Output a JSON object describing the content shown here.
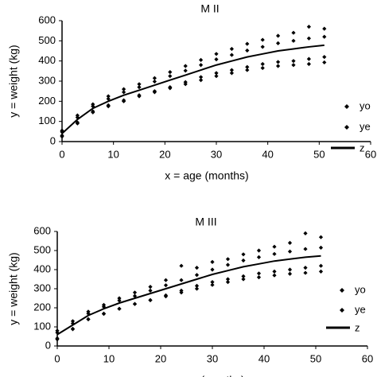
{
  "chart_data": [
    {
      "type": "scatter",
      "title": "M II",
      "x_label": "x = age (months)",
      "y_label": "y = weight (kg)",
      "xlim": [
        0,
        60
      ],
      "ylim": [
        0,
        600
      ],
      "xticks": [
        0,
        10,
        20,
        30,
        40,
        50,
        60
      ],
      "yticks": [
        0,
        100,
        200,
        300,
        400,
        500,
        600
      ],
      "legend": "right",
      "series": [
        {
          "name": "yo",
          "color": "#000000",
          "style": "marker",
          "x": [
            0,
            0,
            3,
            3,
            6,
            6,
            9,
            9,
            12,
            12,
            15,
            15,
            18,
            18,
            21,
            21,
            24,
            24,
            27,
            27,
            30,
            30,
            33,
            33,
            36,
            36,
            39,
            39,
            42,
            42,
            45,
            45,
            48,
            48,
            51,
            51
          ],
          "values": [
            55,
            30,
            130,
            95,
            185,
            150,
            225,
            180,
            260,
            205,
            285,
            230,
            315,
            250,
            345,
            270,
            375,
            295,
            405,
            320,
            435,
            340,
            460,
            355,
            485,
            370,
            505,
            385,
            525,
            395,
            540,
            400,
            570,
            410,
            560,
            420
          ]
        },
        {
          "name": "ye",
          "color": "#000000",
          "style": "marker",
          "x": [
            0,
            0,
            3,
            3,
            6,
            6,
            9,
            9,
            12,
            12,
            15,
            15,
            18,
            18,
            21,
            21,
            24,
            24,
            27,
            27,
            30,
            30,
            33,
            33,
            36,
            36,
            39,
            39,
            42,
            42,
            45,
            45,
            48,
            48,
            51,
            51
          ],
          "values": [
            48,
            25,
            120,
            90,
            175,
            145,
            212,
            175,
            245,
            200,
            270,
            225,
            298,
            245,
            325,
            265,
            352,
            285,
            380,
            305,
            408,
            325,
            430,
            340,
            452,
            355,
            470,
            365,
            488,
            375,
            500,
            380,
            512,
            385,
            520,
            393
          ]
        },
        {
          "name": "z",
          "color": "#000000",
          "style": "line",
          "x": [
            0,
            3,
            6,
            9,
            12,
            15,
            18,
            21,
            24,
            27,
            30,
            33,
            36,
            39,
            42,
            45,
            48,
            51
          ],
          "values": [
            40,
            110,
            165,
            200,
            230,
            255,
            280,
            305,
            330,
            355,
            380,
            400,
            420,
            435,
            450,
            460,
            470,
            478
          ]
        }
      ]
    },
    {
      "type": "scatter",
      "title": "M III",
      "x_label": "x = age (months)",
      "y_label": "y = weight (kg)",
      "xlim": [
        0,
        60
      ],
      "ylim": [
        0,
        600
      ],
      "xticks": [
        0,
        10,
        20,
        30,
        40,
        50,
        60
      ],
      "yticks": [
        0,
        100,
        200,
        300,
        400,
        500,
        600
      ],
      "legend": "right",
      "series": [
        {
          "name": "yo",
          "color": "#000000",
          "style": "marker",
          "x": [
            0,
            0,
            3,
            3,
            6,
            6,
            9,
            9,
            12,
            12,
            15,
            15,
            18,
            18,
            21,
            21,
            24,
            24,
            27,
            27,
            30,
            30,
            33,
            33,
            36,
            36,
            39,
            39,
            42,
            42,
            45,
            45,
            48,
            48,
            51,
            51
          ],
          "values": [
            80,
            40,
            130,
            90,
            180,
            140,
            215,
            170,
            250,
            195,
            280,
            220,
            310,
            240,
            345,
            265,
            420,
            290,
            410,
            315,
            440,
            335,
            455,
            350,
            480,
            365,
            500,
            380,
            520,
            390,
            540,
            400,
            590,
            410,
            570,
            420
          ]
        },
        {
          "name": "ye",
          "color": "#000000",
          "style": "marker",
          "x": [
            0,
            0,
            3,
            3,
            6,
            6,
            9,
            9,
            12,
            12,
            15,
            15,
            18,
            18,
            21,
            21,
            24,
            24,
            27,
            27,
            30,
            30,
            33,
            33,
            36,
            36,
            39,
            39,
            42,
            42,
            45,
            45,
            48,
            48,
            51,
            51
          ],
          "values": [
            70,
            35,
            118,
            88,
            170,
            140,
            205,
            168,
            238,
            195,
            262,
            220,
            290,
            240,
            318,
            260,
            345,
            280,
            372,
            300,
            400,
            320,
            425,
            335,
            448,
            350,
            465,
            360,
            482,
            370,
            495,
            378,
            508,
            383,
            515,
            390
          ]
        },
        {
          "name": "z",
          "color": "#000000",
          "style": "line",
          "x": [
            0,
            3,
            6,
            9,
            12,
            15,
            18,
            21,
            24,
            27,
            30,
            33,
            36,
            39,
            42,
            45,
            48,
            51
          ],
          "values": [
            60,
            110,
            160,
            195,
            225,
            250,
            275,
            300,
            325,
            350,
            375,
            395,
            415,
            430,
            445,
            455,
            465,
            472
          ]
        }
      ]
    }
  ]
}
